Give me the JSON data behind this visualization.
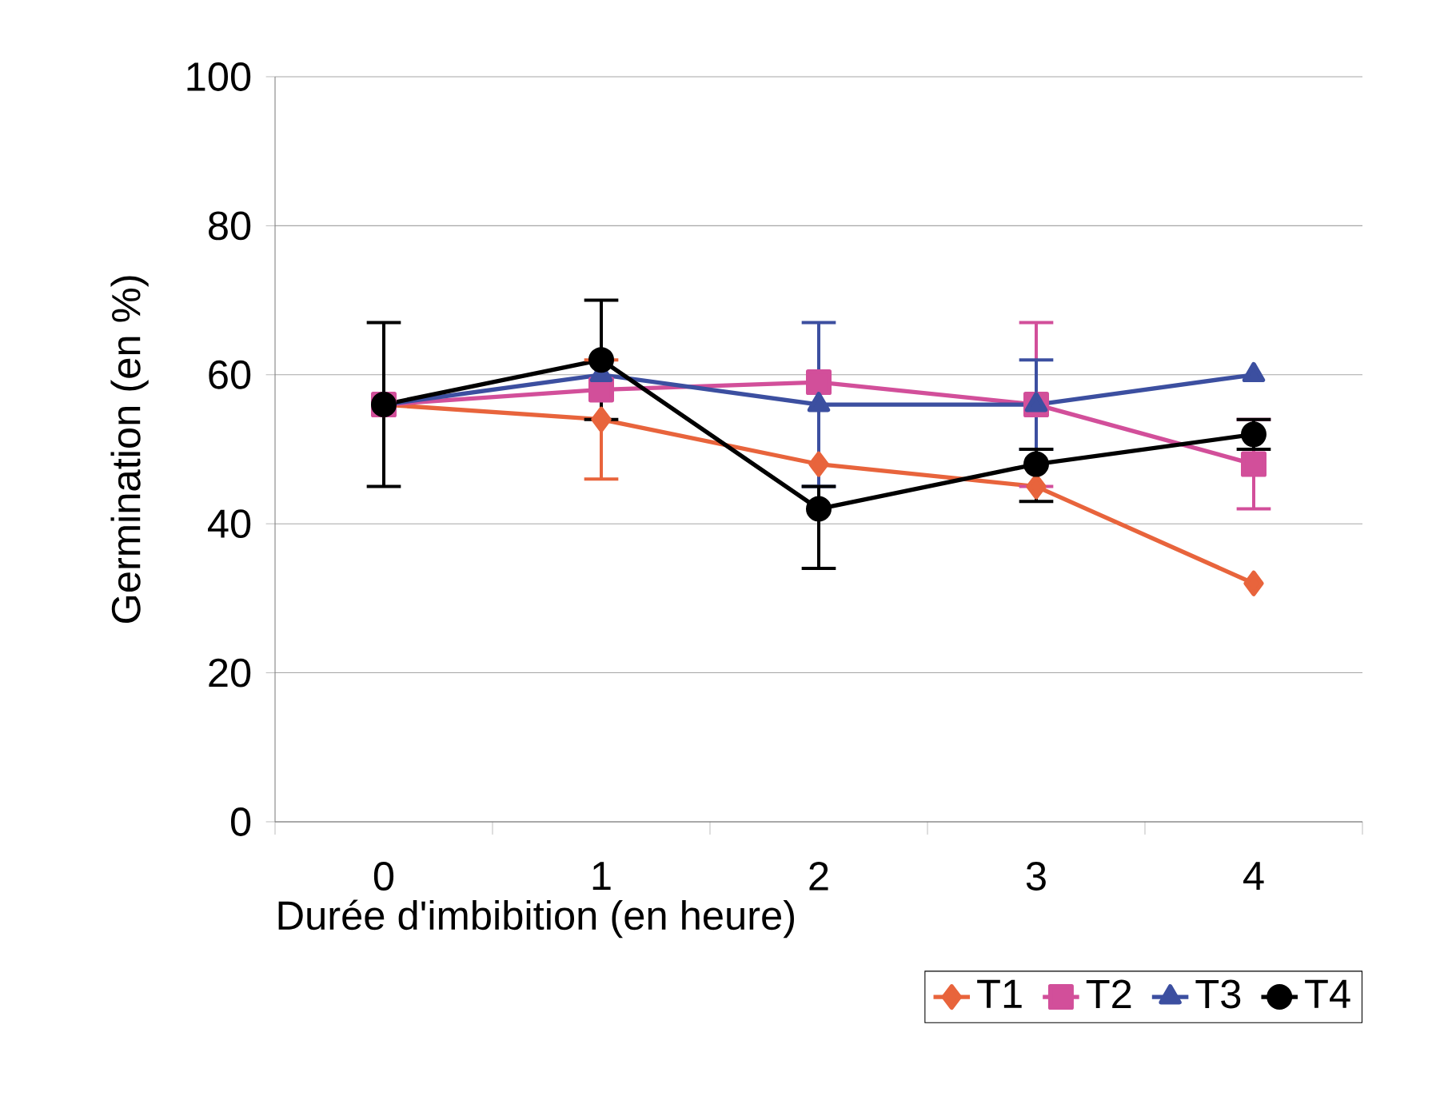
{
  "chart_data": {
    "type": "line",
    "xlabel": "Durée d'imbibition (en heure)",
    "ylabel": "Germination (en %)",
    "categories": [
      "0",
      "1",
      "2",
      "3",
      "4"
    ],
    "ylim": [
      0,
      100
    ],
    "yticks": [
      0,
      20,
      40,
      60,
      80,
      100
    ],
    "grid": "y",
    "legend": "bottom right",
    "line_style": "solid",
    "series": [
      {
        "name": "T1",
        "color": "#e8643c",
        "marker": "diamond",
        "values": [
          56,
          54,
          48,
          45,
          32
        ],
        "errors": [
          null,
          8,
          null,
          null,
          null
        ]
      },
      {
        "name": "T2",
        "color": "#d24f9a",
        "marker": "square",
        "values": [
          56,
          58,
          59,
          56,
          48
        ],
        "errors": [
          null,
          null,
          null,
          11,
          6
        ]
      },
      {
        "name": "T3",
        "color": "#3c4fa0",
        "marker": "triangle",
        "values": [
          56,
          60,
          56,
          56,
          60
        ],
        "errors": [
          null,
          null,
          11,
          6,
          null
        ]
      },
      {
        "name": "T4",
        "color": "#000000",
        "marker": "circle",
        "values": [
          56,
          62,
          42,
          48,
          52
        ],
        "errors": [
          11,
          8,
          [
            34,
            45
          ],
          [
            43,
            50
          ],
          2
        ]
      }
    ]
  }
}
